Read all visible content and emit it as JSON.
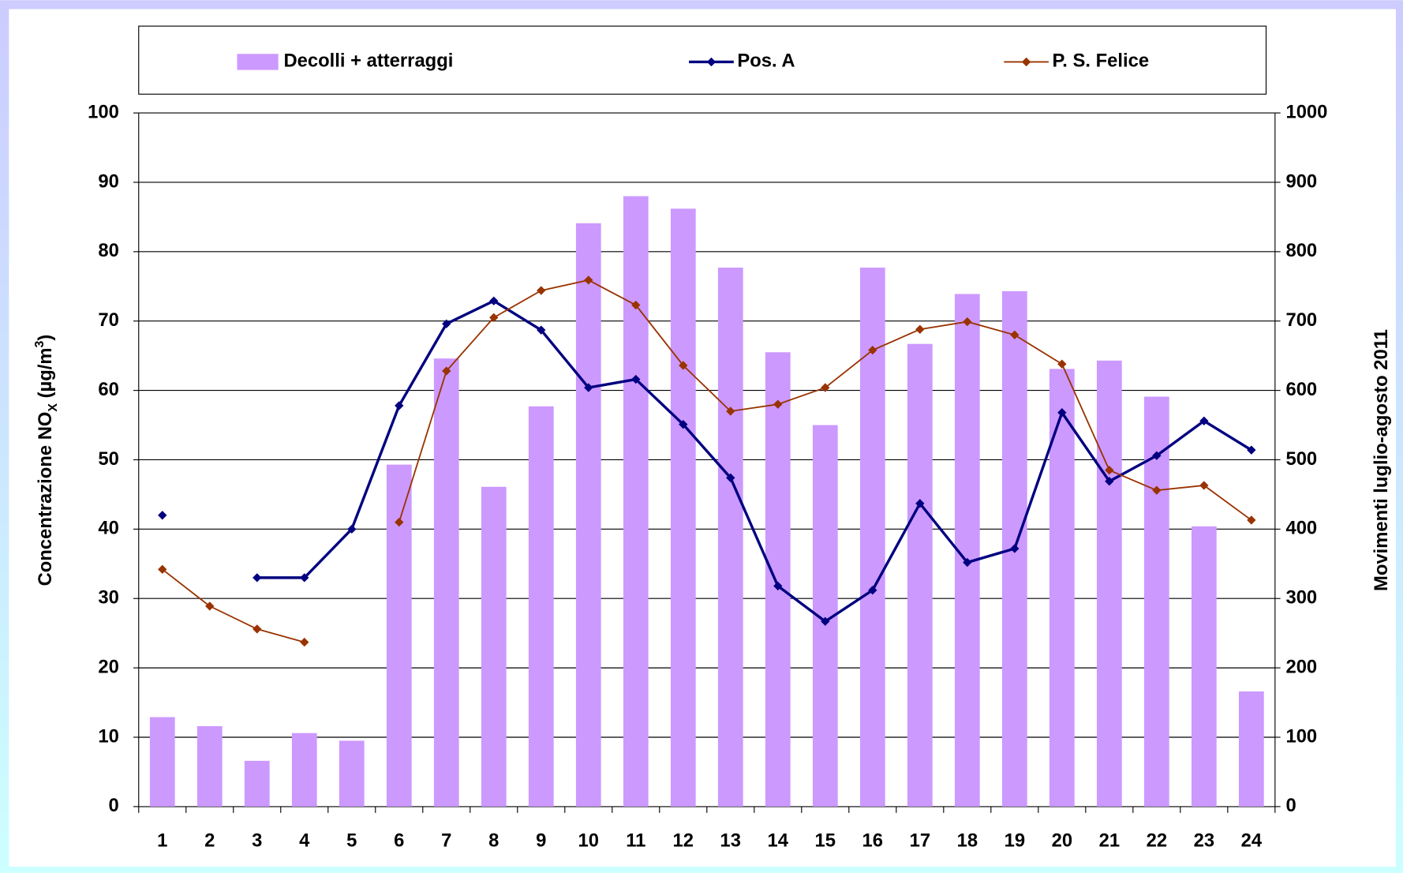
{
  "chart_data": {
    "type": "bar-line",
    "y_label": [
      "Concentrazione NO",
      "X",
      " (µg/m",
      "3",
      ")"
    ],
    "y2_label": "Movimenti luglio-agosto 2011",
    "categories": [
      "1",
      "2",
      "3",
      "4",
      "5",
      "6",
      "7",
      "8",
      "9",
      "10",
      "11",
      "12",
      "13",
      "14",
      "15",
      "16",
      "17",
      "18",
      "19",
      "20",
      "21",
      "22",
      "23",
      "24"
    ],
    "series": [
      {
        "name": "Decolli + atterraggi",
        "kind": "bar",
        "axis": "y2",
        "color": "#cc99ff",
        "values": [
          129,
          116,
          66,
          106,
          95,
          493,
          646,
          461,
          577,
          841,
          880,
          862,
          777,
          655,
          550,
          777,
          667,
          739,
          743,
          631,
          643,
          591,
          404,
          166
        ]
      },
      {
        "name": "Pos. A",
        "kind": "line",
        "color": "#000080",
        "values": [
          42,
          null,
          33,
          33,
          40,
          57.8,
          69.6,
          72.9,
          68.7,
          60.4,
          61.6,
          55.1,
          47.4,
          31.8,
          26.7,
          31.2,
          43.7,
          35.2,
          37.2,
          56.8,
          46.9,
          50.6,
          55.6,
          51.4
        ]
      },
      {
        "name": "P. S. Felice",
        "kind": "line",
        "color": "#993300",
        "values": [
          34.2,
          28.9,
          25.6,
          23.7,
          null,
          41,
          62.8,
          70.5,
          74.4,
          75.9,
          72.3,
          63.6,
          57,
          58,
          60.4,
          65.8,
          68.8,
          69.9,
          68,
          63.8,
          48.5,
          45.6,
          46.3,
          41.3
        ]
      }
    ],
    "ylim": [
      0,
      100
    ],
    "yticks": [
      0,
      10,
      20,
      30,
      40,
      50,
      60,
      70,
      80,
      90,
      100
    ],
    "y2lim": [
      0,
      1000
    ],
    "y2ticks": [
      0,
      100,
      200,
      300,
      400,
      500,
      600,
      700,
      800,
      900,
      1000
    ],
    "grid": true,
    "legend": "top"
  }
}
